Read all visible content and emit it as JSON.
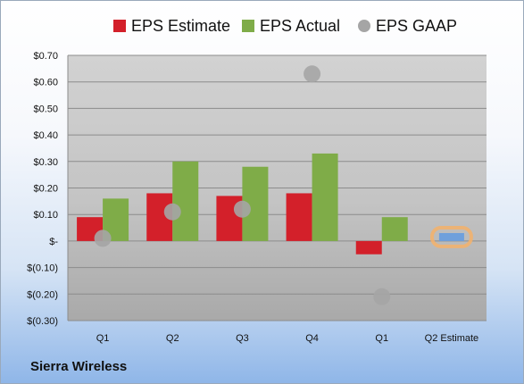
{
  "company": "Sierra Wireless",
  "colors": {
    "estimate": "#d3202a",
    "actual": "#7fac48",
    "gaap": "#a5a5a5",
    "forecast": "#6fa0dc",
    "forecast_ring": "#f5b26a"
  },
  "chart_data": {
    "type": "bar",
    "categories": [
      "Q1",
      "Q2",
      "Q3",
      "Q4",
      "Q1",
      "Q2 Estimate"
    ],
    "series": [
      {
        "name": "EPS Estimate",
        "type": "bar",
        "values": [
          0.09,
          0.18,
          0.17,
          0.18,
          -0.05,
          null
        ]
      },
      {
        "name": "EPS Actual",
        "type": "bar",
        "values": [
          0.16,
          0.3,
          0.28,
          0.33,
          0.09,
          null
        ]
      },
      {
        "name": "EPS GAAP",
        "type": "scatter",
        "values": [
          0.01,
          0.11,
          0.12,
          0.63,
          -0.21,
          null
        ]
      }
    ],
    "forecast": {
      "category": "Q2 Estimate",
      "value": 0.03
    },
    "ylim": [
      -0.3,
      0.7
    ],
    "yticks": [
      0.7,
      0.6,
      0.5,
      0.4,
      0.3,
      0.2,
      0.1,
      0,
      -0.1,
      -0.2,
      -0.3
    ],
    "ytick_labels": [
      "$0.70",
      "$0.60",
      "$0.50",
      "$0.40",
      "$0.30",
      "$0.20",
      "$0.10",
      "$-",
      "$(0.10)",
      "$(0.20)",
      "$(0.30)"
    ],
    "grid": true,
    "legend": "top"
  }
}
